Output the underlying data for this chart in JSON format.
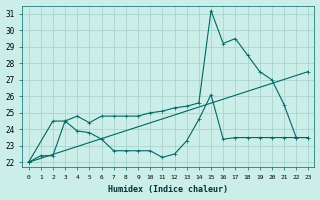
{
  "xlabel": "Humidex (Indice chaleur)",
  "bg_color": "#cceee8",
  "grid_color": "#aad4ce",
  "line_color": "#006666",
  "xlim": [
    -0.5,
    23.5
  ],
  "ylim": [
    21.7,
    31.5
  ],
  "yticks": [
    22,
    23,
    24,
    25,
    26,
    27,
    28,
    29,
    30,
    31
  ],
  "xtick_labels": [
    "0",
    "1",
    "2",
    "3",
    "4",
    "5",
    "6",
    "7",
    "8",
    "9",
    "10",
    "11",
    "12",
    "13",
    "14",
    "15",
    "16",
    "17",
    "18",
    "19",
    "20",
    "21",
    "22",
    "23"
  ],
  "series1_x": [
    0,
    1,
    2,
    3,
    4,
    5,
    6,
    7,
    8,
    9,
    10,
    11,
    12,
    13,
    14,
    15,
    16,
    17,
    18,
    19,
    20,
    21,
    22,
    23
  ],
  "series1_y": [
    22.0,
    22.4,
    22.4,
    24.5,
    23.9,
    23.8,
    23.4,
    22.7,
    22.7,
    22.7,
    22.7,
    22.3,
    22.5,
    23.3,
    24.6,
    26.1,
    23.4,
    23.5,
    23.5,
    23.5,
    23.5,
    23.5,
    23.5,
    23.5
  ],
  "series2_x": [
    0,
    2,
    3,
    4,
    5,
    6,
    7,
    8,
    9,
    10,
    11,
    12,
    13,
    14,
    15,
    16,
    17,
    18,
    19,
    20,
    21,
    22,
    23
  ],
  "series2_y": [
    22.0,
    24.5,
    24.5,
    24.8,
    24.4,
    24.8,
    24.8,
    24.8,
    24.8,
    25.0,
    25.1,
    25.3,
    25.4,
    25.6,
    31.2,
    29.2,
    29.5,
    28.5,
    27.5,
    27.0,
    25.5,
    23.5,
    23.5
  ],
  "series3_x": [
    0,
    23
  ],
  "series3_y": [
    22.0,
    27.5
  ]
}
